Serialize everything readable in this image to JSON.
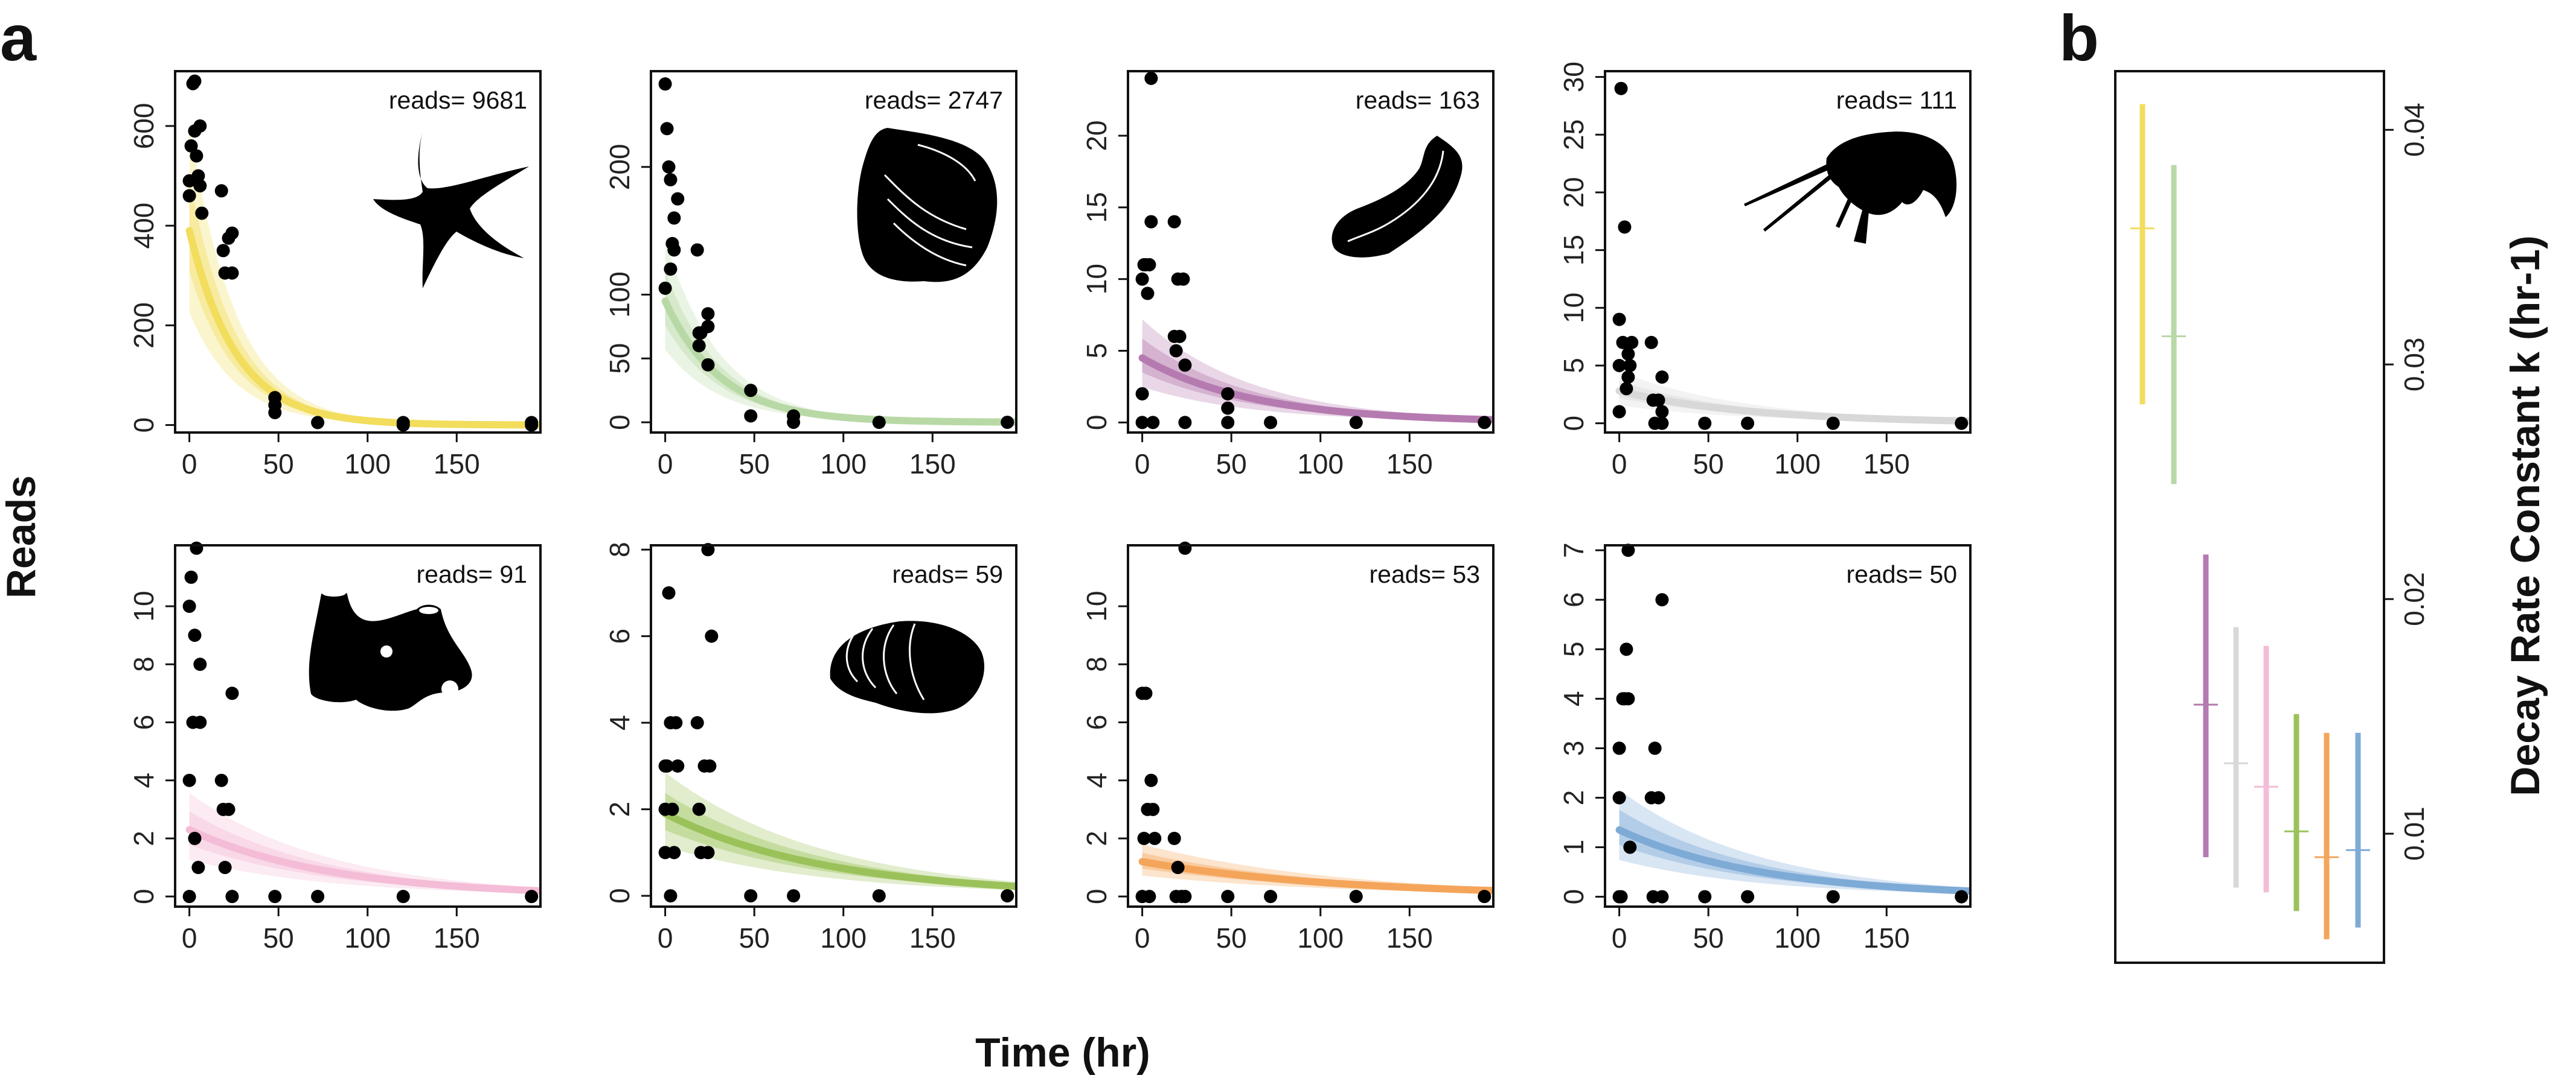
{
  "panel_labels": {
    "a": "a",
    "b": "b"
  },
  "axis_titles": {
    "y": "Reads",
    "x": "Time (hr)",
    "b_y": "Decay Rate Constant k (hr-1)"
  },
  "x_ticks": [
    "0",
    "50",
    "100",
    "150"
  ],
  "chart_data": [
    {
      "type": "scatter",
      "reads_label": "reads= 9681",
      "icon": "sea-star-icon",
      "color": "#f2dd5c",
      "ylim": [
        -15,
        710
      ],
      "yticks": [
        0,
        200,
        400,
        600
      ],
      "points": [
        [
          0,
          460
        ],
        [
          0,
          490
        ],
        [
          1,
          560
        ],
        [
          2,
          685
        ],
        [
          3,
          690
        ],
        [
          3,
          590
        ],
        [
          4,
          540
        ],
        [
          5,
          500
        ],
        [
          6,
          600
        ],
        [
          6,
          480
        ],
        [
          7,
          425
        ],
        [
          18,
          470
        ],
        [
          19,
          350
        ],
        [
          20,
          305
        ],
        [
          22,
          375
        ],
        [
          24,
          305
        ],
        [
          24,
          385
        ],
        [
          48,
          40
        ],
        [
          48,
          55
        ],
        [
          48,
          25
        ],
        [
          72,
          5
        ],
        [
          120,
          5
        ],
        [
          120,
          0
        ],
        [
          192,
          5
        ],
        [
          192,
          0
        ]
      ],
      "fit": {
        "y0": 390,
        "k": 0.038,
        "lo": 0.58,
        "hi": 1.55
      }
    },
    {
      "type": "scatter",
      "reads_label": "reads= 2747",
      "icon": "oyster-shell-icon",
      "color": "#b8d9a6",
      "ylim": [
        -8,
        275
      ],
      "yticks": [
        0,
        50,
        100,
        200
      ],
      "points": [
        [
          0,
          265
        ],
        [
          0,
          105
        ],
        [
          1,
          230
        ],
        [
          2,
          200
        ],
        [
          3,
          120
        ],
        [
          3,
          190
        ],
        [
          4,
          140
        ],
        [
          5,
          160
        ],
        [
          5,
          135
        ],
        [
          7,
          175
        ],
        [
          18,
          135
        ],
        [
          19,
          70
        ],
        [
          19,
          60
        ],
        [
          20,
          70
        ],
        [
          24,
          45
        ],
        [
          24,
          75
        ],
        [
          24,
          85
        ],
        [
          48,
          25
        ],
        [
          48,
          5
        ],
        [
          72,
          5
        ],
        [
          72,
          0
        ],
        [
          120,
          0
        ],
        [
          192,
          0
        ]
      ],
      "fit": {
        "y0": 95,
        "k": 0.032,
        "lo": 0.6,
        "hi": 1.5
      }
    },
    {
      "type": "scatter",
      "reads_label": "reads= 163",
      "icon": "worm-icon",
      "color": "#b57ab0",
      "ylim": [
        -0.7,
        24.5
      ],
      "yticks": [
        0,
        5,
        10,
        15,
        20
      ],
      "points": [
        [
          0,
          0
        ],
        [
          0,
          2
        ],
        [
          0,
          10
        ],
        [
          1,
          11
        ],
        [
          2,
          11
        ],
        [
          3,
          9
        ],
        [
          4,
          11
        ],
        [
          5,
          24
        ],
        [
          5,
          14
        ],
        [
          6,
          0
        ],
        [
          18,
          14
        ],
        [
          18,
          6
        ],
        [
          19,
          5
        ],
        [
          20,
          10
        ],
        [
          21,
          6
        ],
        [
          23,
          10
        ],
        [
          24,
          4
        ],
        [
          24,
          0
        ],
        [
          48,
          2
        ],
        [
          48,
          1
        ],
        [
          48,
          0
        ],
        [
          72,
          0
        ],
        [
          120,
          0
        ],
        [
          192,
          0
        ]
      ],
      "fit": {
        "y0": 4.5,
        "k": 0.016,
        "lo": 0.55,
        "hi": 1.6
      }
    },
    {
      "type": "scatter",
      "reads_label": "reads= 111",
      "icon": "amphipod-icon",
      "color": "#d8d8d8",
      "ylim": [
        -0.8,
        30.5
      ],
      "yticks": [
        0,
        5,
        10,
        15,
        20,
        25,
        30
      ],
      "points": [
        [
          0,
          1
        ],
        [
          0,
          5
        ],
        [
          0,
          9
        ],
        [
          1,
          29
        ],
        [
          2,
          7
        ],
        [
          3,
          17
        ],
        [
          4,
          3
        ],
        [
          5,
          4
        ],
        [
          5,
          6
        ],
        [
          6,
          5
        ],
        [
          7,
          7
        ],
        [
          18,
          7
        ],
        [
          19,
          2
        ],
        [
          20,
          0
        ],
        [
          22,
          2
        ],
        [
          24,
          1
        ],
        [
          24,
          0
        ],
        [
          24,
          4
        ],
        [
          48,
          0
        ],
        [
          72,
          0
        ],
        [
          120,
          0
        ],
        [
          192,
          0
        ]
      ],
      "fit": {
        "y0": 2.8,
        "k": 0.0135,
        "lo": 0.55,
        "hi": 1.6
      }
    },
    {
      "type": "scatter",
      "reads_label": "reads= 91",
      "icon": "sponge-icon",
      "color": "#f4bcd6",
      "ylim": [
        -0.35,
        12.1
      ],
      "yticks": [
        0,
        2,
        4,
        6,
        8,
        10
      ],
      "points": [
        [
          0,
          0
        ],
        [
          0,
          4
        ],
        [
          0,
          10
        ],
        [
          1,
          11
        ],
        [
          2,
          6
        ],
        [
          3,
          9
        ],
        [
          3,
          2
        ],
        [
          4,
          12
        ],
        [
          5,
          1
        ],
        [
          6,
          8
        ],
        [
          6,
          6
        ],
        [
          18,
          4
        ],
        [
          19,
          3
        ],
        [
          20,
          1
        ],
        [
          22,
          3
        ],
        [
          24,
          7
        ],
        [
          24,
          0
        ],
        [
          48,
          0
        ],
        [
          72,
          0
        ],
        [
          120,
          0
        ],
        [
          192,
          0
        ]
      ],
      "fit": {
        "y0": 2.3,
        "k": 0.0125,
        "lo": 0.55,
        "hi": 1.55
      }
    },
    {
      "type": "scatter",
      "reads_label": "reads= 59",
      "icon": "clam-shell-icon",
      "color": "#9bc25a",
      "ylim": [
        -0.25,
        8.1
      ],
      "yticks": [
        0,
        2,
        4,
        6,
        8
      ],
      "points": [
        [
          0,
          1
        ],
        [
          0,
          2
        ],
        [
          0,
          3
        ],
        [
          1,
          3
        ],
        [
          2,
          7
        ],
        [
          3,
          4
        ],
        [
          3,
          0
        ],
        [
          4,
          2
        ],
        [
          5,
          1
        ],
        [
          6,
          4
        ],
        [
          7,
          3
        ],
        [
          18,
          4
        ],
        [
          19,
          2
        ],
        [
          20,
          1
        ],
        [
          22,
          3
        ],
        [
          24,
          1
        ],
        [
          24,
          8
        ],
        [
          25,
          3
        ],
        [
          26,
          6
        ],
        [
          48,
          0
        ],
        [
          72,
          0
        ],
        [
          120,
          0
        ],
        [
          192,
          0
        ]
      ],
      "fit": {
        "y0": 1.9,
        "k": 0.011,
        "lo": 0.6,
        "hi": 1.5
      }
    },
    {
      "type": "scatter",
      "reads_label": "reads= 53",
      "icon": "",
      "color": "#f4a55a",
      "ylim": [
        -0.35,
        12.1
      ],
      "yticks": [
        0,
        2,
        4,
        6,
        8,
        10
      ],
      "points": [
        [
          0,
          0
        ],
        [
          0,
          7
        ],
        [
          1,
          2
        ],
        [
          2,
          7
        ],
        [
          3,
          3
        ],
        [
          4,
          0
        ],
        [
          5,
          4
        ],
        [
          6,
          3
        ],
        [
          7,
          2
        ],
        [
          18,
          2
        ],
        [
          19,
          0
        ],
        [
          20,
          1
        ],
        [
          22,
          0
        ],
        [
          24,
          12
        ],
        [
          24,
          0
        ],
        [
          48,
          0
        ],
        [
          72,
          0
        ],
        [
          120,
          0
        ],
        [
          192,
          0
        ]
      ],
      "fit": {
        "y0": 1.2,
        "k": 0.009,
        "lo": 0.6,
        "hi": 1.5
      }
    },
    {
      "type": "scatter",
      "reads_label": "reads= 50",
      "icon": "",
      "color": "#7eaad6",
      "ylim": [
        -0.2,
        7.1
      ],
      "yticks": [
        0,
        1,
        2,
        3,
        4,
        5,
        6,
        7
      ],
      "points": [
        [
          0,
          0
        ],
        [
          0,
          2
        ],
        [
          0,
          3
        ],
        [
          1,
          0
        ],
        [
          2,
          4
        ],
        [
          3,
          4
        ],
        [
          4,
          5
        ],
        [
          5,
          7
        ],
        [
          5,
          4
        ],
        [
          6,
          1
        ],
        [
          18,
          2
        ],
        [
          19,
          0
        ],
        [
          20,
          3
        ],
        [
          22,
          2
        ],
        [
          24,
          6
        ],
        [
          24,
          0
        ],
        [
          48,
          0
        ],
        [
          72,
          0
        ],
        [
          120,
          0
        ],
        [
          192,
          0
        ]
      ],
      "fit": {
        "y0": 1.35,
        "k": 0.0125,
        "lo": 0.55,
        "hi": 1.6
      }
    },
    {
      "type": "interval",
      "ylim": [
        0.0045,
        0.0425
      ],
      "yticks": [
        "0.01",
        "0.02",
        "0.03",
        "0.04"
      ],
      "intervals": [
        {
          "color": "#f2dd5c",
          "low": 0.0283,
          "mid": 0.0358,
          "high": 0.0411
        },
        {
          "color": "#b8d9a6",
          "low": 0.0249,
          "mid": 0.0312,
          "high": 0.0385
        },
        {
          "color": "#b57ab0",
          "low": 0.009,
          "mid": 0.0155,
          "high": 0.0219
        },
        {
          "color": "#d8d8d8",
          "low": 0.0077,
          "mid": 0.013,
          "high": 0.0188
        },
        {
          "color": "#f4bcd6",
          "low": 0.0075,
          "mid": 0.012,
          "high": 0.018
        },
        {
          "color": "#9bc25a",
          "low": 0.0067,
          "mid": 0.0101,
          "high": 0.0151
        },
        {
          "color": "#f4a55a",
          "low": 0.0055,
          "mid": 0.009,
          "high": 0.0143
        },
        {
          "color": "#7eaad6",
          "low": 0.006,
          "mid": 0.0093,
          "high": 0.0143
        }
      ]
    }
  ]
}
